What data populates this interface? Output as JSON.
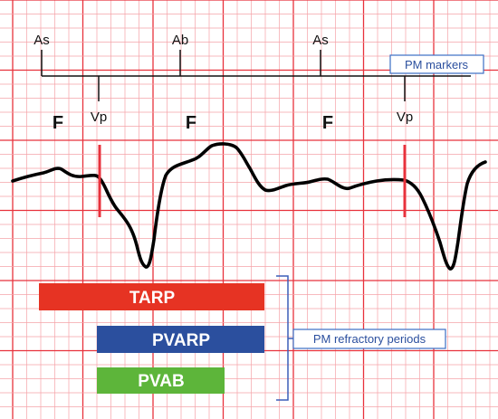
{
  "colors": {
    "grid_minor": "#f5a3a8",
    "grid_major": "#e8323c",
    "marker_line": "#111111",
    "waveform": "#000000",
    "pacing_spike": "#e8323c",
    "bracket": "#3b5fb8",
    "tarp": "#e63323",
    "pvarp": "#2b4f9e",
    "pvab": "#5db53a",
    "callout_border": "#3b6fc4",
    "callout_text": "#2b4f9e"
  },
  "markers": {
    "atrial": [
      {
        "name": "marker-as-1",
        "label": "As"
      },
      {
        "name": "marker-ab",
        "label": "Ab"
      },
      {
        "name": "marker-as-2",
        "label": "As"
      }
    ],
    "ventricular": [
      {
        "name": "marker-vp-1",
        "label": "Vp"
      },
      {
        "name": "marker-vp-2",
        "label": "Vp"
      }
    ],
    "flutter_waves": [
      {
        "name": "flutter-f-1",
        "label": "F"
      },
      {
        "name": "flutter-f-2",
        "label": "F"
      },
      {
        "name": "flutter-f-3",
        "label": "F"
      }
    ],
    "callout": "PM markers"
  },
  "refractory": {
    "bars": [
      {
        "name": "tarp-bar",
        "label": "TARP",
        "color": "#e63323"
      },
      {
        "name": "pvarp-bar",
        "label": "PVARP",
        "color": "#2b4f9e"
      },
      {
        "name": "pvab-bar",
        "label": "PVAB",
        "color": "#5db53a"
      }
    ],
    "callout": "PM refractory periods"
  }
}
